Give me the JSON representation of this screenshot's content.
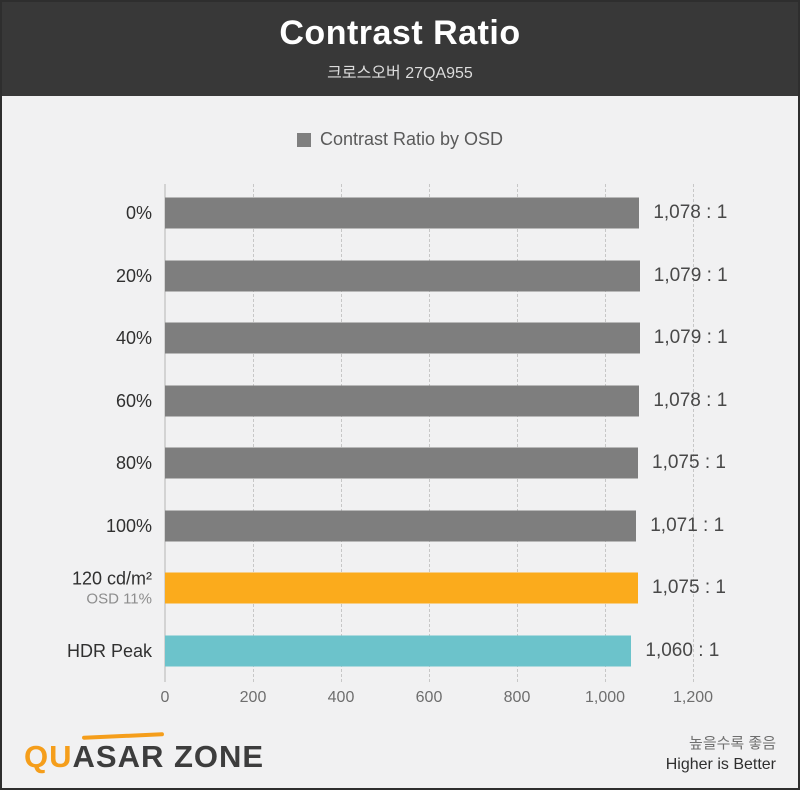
{
  "header": {
    "title": "Contrast Ratio",
    "subtitle": "크로스오버 27QA955"
  },
  "legend": {
    "label": "Contrast Ratio by OSD",
    "marker_color": "#7f7f7f"
  },
  "chart_data": {
    "type": "bar",
    "orientation": "horizontal",
    "title": "Contrast Ratio",
    "subtitle": "크로스오버 27QA955",
    "legend_entries": [
      "Contrast Ratio by OSD"
    ],
    "legend_position": "top-center",
    "categories": [
      "0%",
      "20%",
      "40%",
      "60%",
      "80%",
      "100%",
      "120 cd/m²",
      "HDR Peak"
    ],
    "sub_labels": [
      "",
      "",
      "",
      "",
      "",
      "",
      "OSD 11%",
      ""
    ],
    "values": [
      1078,
      1079,
      1079,
      1078,
      1075,
      1071,
      1075,
      1060
    ],
    "value_labels": [
      "1,078 : 1",
      "1,079 : 1",
      "1,079 : 1",
      "1,078 : 1",
      "1,075 : 1",
      "1,071 : 1",
      "1,075 : 1",
      "1,060 : 1"
    ],
    "bar_colors": [
      "#7e7e7e",
      "#7e7e7e",
      "#7e7e7e",
      "#7e7e7e",
      "#7e7e7e",
      "#7e7e7e",
      "#fbab1c",
      "#6cc3cb"
    ],
    "xlim": [
      0,
      1200
    ],
    "x_ticks": [
      0,
      200,
      400,
      600,
      800,
      1000,
      1200
    ],
    "x_tick_labels": [
      "0",
      "200",
      "400",
      "600",
      "800",
      "1,000",
      "1,200"
    ],
    "grid": "dashed-vertical",
    "background": "#f1f1f2"
  },
  "footer": {
    "logo_pre": "QU",
    "logo_rest": "ASAR ZONE",
    "note_ko": "높을수록 좋음",
    "note_en": "Higher is Better"
  },
  "colors": {
    "header_bg": "#383838",
    "bar_default": "#7e7e7e",
    "bar_highlight_orange": "#fbab1c",
    "bar_highlight_teal": "#6cc3cb",
    "logo_accent": "#f59e1b"
  }
}
